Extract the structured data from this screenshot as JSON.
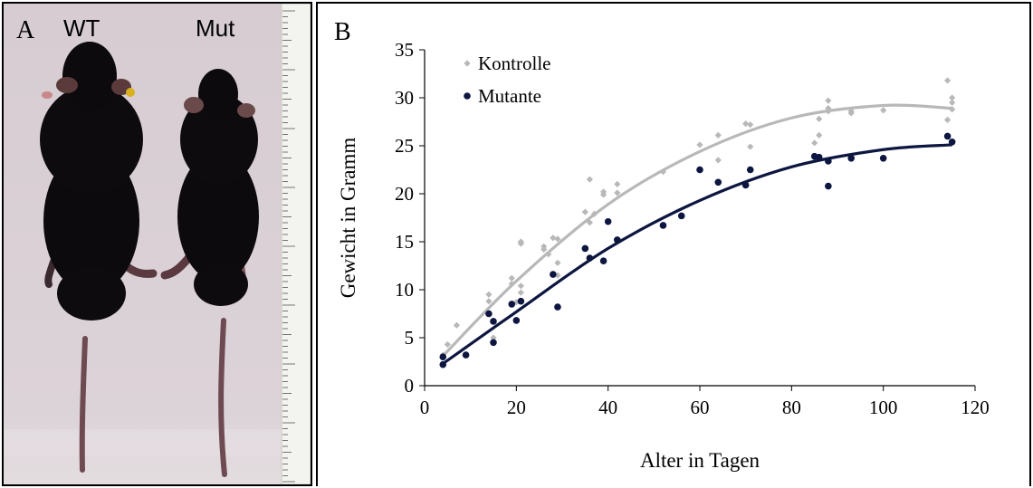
{
  "panel_a": {
    "letter": "A",
    "left_label": "WT",
    "right_label": "Mut"
  },
  "panel_b": {
    "letter": "B"
  },
  "colors": {
    "kontrolle": "#b8b8b8",
    "mutante": "#0d1640",
    "fur": "#0c0a0c",
    "tail": "#6e4a52",
    "ruler": "#f2f2ee"
  },
  "chart_data": {
    "type": "scatter",
    "xlabel": "Alter in Tagen",
    "ylabel": "Gewicht in Gramm",
    "xlim": [
      0,
      120
    ],
    "ylim": [
      0,
      35
    ],
    "xticks": [
      0,
      20,
      40,
      60,
      80,
      100,
      120
    ],
    "yticks": [
      0,
      5,
      10,
      15,
      20,
      25,
      30,
      35
    ],
    "legend": "top-left",
    "grid": false,
    "series": [
      {
        "name": "Kontrolle",
        "marker": "diamond",
        "points": [
          [
            4,
            3.2
          ],
          [
            5,
            4.3
          ],
          [
            7,
            6.3
          ],
          [
            14,
            9.5
          ],
          [
            14,
            8.8
          ],
          [
            15,
            5.0
          ],
          [
            15,
            6.7
          ],
          [
            19,
            11.2
          ],
          [
            19,
            10.6
          ],
          [
            20,
            8.7
          ],
          [
            21,
            15.0
          ],
          [
            21,
            14.8
          ],
          [
            21,
            10.4
          ],
          [
            21,
            9.7
          ],
          [
            26,
            14.2
          ],
          [
            26,
            14.5
          ],
          [
            27,
            13.7
          ],
          [
            28,
            15.4
          ],
          [
            29,
            15.3
          ],
          [
            29,
            12.8
          ],
          [
            29,
            11.5
          ],
          [
            35,
            18.1
          ],
          [
            36,
            21.5
          ],
          [
            36,
            17.0
          ],
          [
            37,
            17.9
          ],
          [
            39,
            19.9
          ],
          [
            39,
            20.2
          ],
          [
            42,
            21.0
          ],
          [
            42,
            20.1
          ],
          [
            52,
            22.3
          ],
          [
            60,
            25.1
          ],
          [
            64,
            26.1
          ],
          [
            64,
            23.5
          ],
          [
            70,
            27.3
          ],
          [
            71,
            27.2
          ],
          [
            71,
            24.9
          ],
          [
            85,
            25.3
          ],
          [
            86,
            26.1
          ],
          [
            86,
            27.8
          ],
          [
            88,
            29.7
          ],
          [
            88,
            28.9
          ],
          [
            88,
            28.6
          ],
          [
            93,
            28.6
          ],
          [
            93,
            28.4
          ],
          [
            100,
            28.7
          ],
          [
            114,
            31.8
          ],
          [
            114,
            27.7
          ],
          [
            115,
            30.0
          ],
          [
            115,
            29.5
          ],
          [
            115,
            28.8
          ]
        ],
        "trend": [
          [
            4,
            3.1
          ],
          [
            20,
            10.9
          ],
          [
            40,
            18.9
          ],
          [
            60,
            24.4
          ],
          [
            80,
            27.9
          ],
          [
            100,
            29.2
          ],
          [
            115,
            28.9
          ]
        ]
      },
      {
        "name": "Mutante",
        "marker": "circle",
        "points": [
          [
            4,
            2.2
          ],
          [
            4,
            3.0
          ],
          [
            9,
            3.2
          ],
          [
            14,
            7.5
          ],
          [
            15,
            6.7
          ],
          [
            15,
            4.5
          ],
          [
            19,
            8.5
          ],
          [
            20,
            6.8
          ],
          [
            21,
            8.8
          ],
          [
            28,
            11.6
          ],
          [
            29,
            8.2
          ],
          [
            35,
            14.3
          ],
          [
            36,
            13.3
          ],
          [
            39,
            13.0
          ],
          [
            40,
            17.1
          ],
          [
            42,
            15.2
          ],
          [
            52,
            16.7
          ],
          [
            56,
            17.7
          ],
          [
            60,
            22.5
          ],
          [
            64,
            21.2
          ],
          [
            70,
            20.9
          ],
          [
            71,
            22.5
          ],
          [
            85,
            23.9
          ],
          [
            86,
            23.8
          ],
          [
            88,
            23.4
          ],
          [
            88,
            20.8
          ],
          [
            93,
            23.7
          ],
          [
            100,
            23.7
          ],
          [
            114,
            26.0
          ],
          [
            115,
            25.4
          ]
        ],
        "trend": [
          [
            4,
            2.3
          ],
          [
            20,
            7.7
          ],
          [
            40,
            14.3
          ],
          [
            60,
            19.3
          ],
          [
            80,
            22.8
          ],
          [
            100,
            24.6
          ],
          [
            115,
            25.1
          ]
        ]
      }
    ]
  }
}
